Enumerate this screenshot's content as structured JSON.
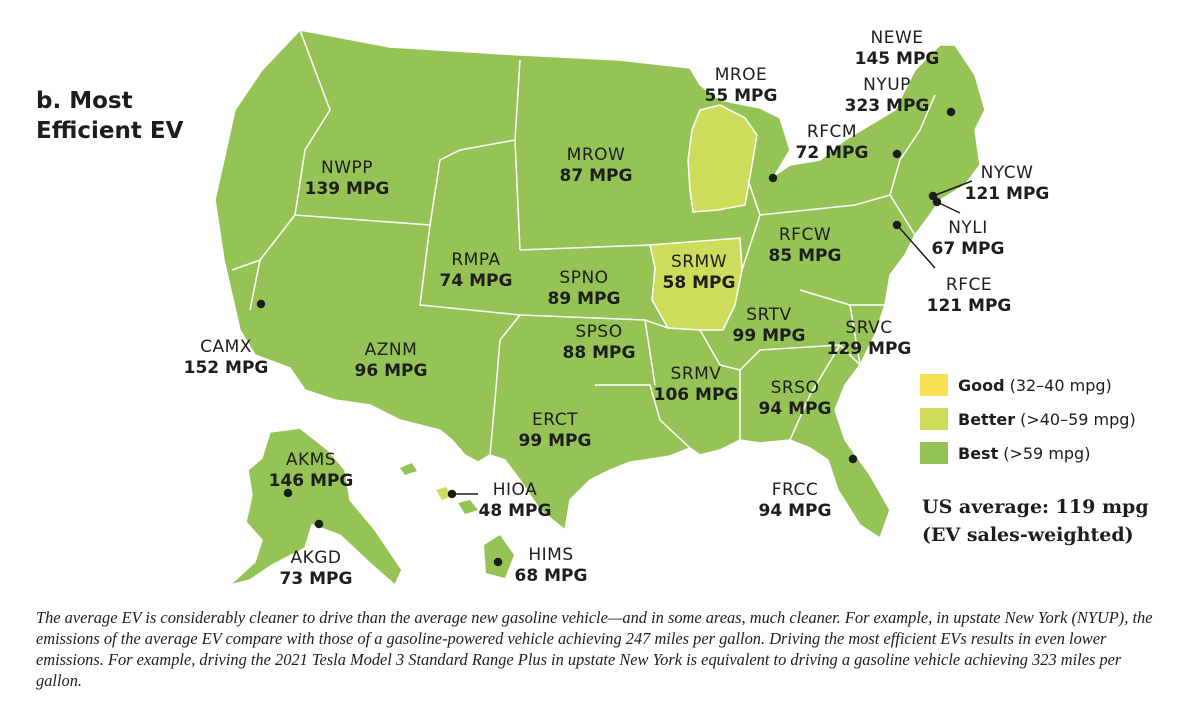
{
  "title": "b. Most Efficient EV",
  "colors": {
    "good": "#f8e154",
    "better": "#cddc5a",
    "best": "#96c356",
    "border": "#ffffff",
    "text": "#1d1d1b"
  },
  "regions": [
    {
      "code": "CAMX",
      "value": "152 MPG",
      "category": "best"
    },
    {
      "code": "NWPP",
      "value": "139 MPG",
      "category": "best"
    },
    {
      "code": "RMPA",
      "value": "74 MPG",
      "category": "best"
    },
    {
      "code": "AZNM",
      "value": "96 MPG",
      "category": "best"
    },
    {
      "code": "SPNO",
      "value": "89 MPG",
      "category": "best"
    },
    {
      "code": "SPSO",
      "value": "88 MPG",
      "category": "best"
    },
    {
      "code": "ERCT",
      "value": "99 MPG",
      "category": "best"
    },
    {
      "code": "MROW",
      "value": "87 MPG",
      "category": "best"
    },
    {
      "code": "MROE",
      "value": "55 MPG",
      "category": "better"
    },
    {
      "code": "SRMW",
      "value": "58 MPG",
      "category": "better"
    },
    {
      "code": "SRMV",
      "value": "106 MPG",
      "category": "best"
    },
    {
      "code": "RFCM",
      "value": "72 MPG",
      "category": "best"
    },
    {
      "code": "RFCW",
      "value": "85 MPG",
      "category": "best"
    },
    {
      "code": "SRTV",
      "value": "99 MPG",
      "category": "best"
    },
    {
      "code": "SRSO",
      "value": "94 MPG",
      "category": "best"
    },
    {
      "code": "SRVC",
      "value": "129 MPG",
      "category": "best"
    },
    {
      "code": "FRCC",
      "value": "94 MPG",
      "category": "best"
    },
    {
      "code": "RFCE",
      "value": "121 MPG",
      "category": "best"
    },
    {
      "code": "NYLI",
      "value": "67 MPG",
      "category": "best"
    },
    {
      "code": "NYCW",
      "value": "121 MPG",
      "category": "best"
    },
    {
      "code": "NYUP",
      "value": "323 MPG",
      "category": "best"
    },
    {
      "code": "NEWE",
      "value": "145 MPG",
      "category": "best"
    },
    {
      "code": "AKMS",
      "value": "146 MPG",
      "category": "best"
    },
    {
      "code": "AKGD",
      "value": "73 MPG",
      "category": "best"
    },
    {
      "code": "HIOA",
      "value": "48 MPG",
      "category": "better"
    },
    {
      "code": "HIMS",
      "value": "68 MPG",
      "category": "best"
    }
  ],
  "legend": [
    {
      "name": "Good",
      "range": "(32–40 mpg)",
      "color": "#f8e154"
    },
    {
      "name": "Better",
      "range": "(>40–59 mpg)",
      "color": "#cddc5a"
    },
    {
      "name": "Best",
      "range": "(>59 mpg)",
      "color": "#96c356"
    }
  ],
  "us_average": {
    "line1": "US average: 119 mpg",
    "line2": "(EV sales-weighted)"
  },
  "caption": "The average EV is considerably cleaner to drive than the average new gasoline vehicle—and in some areas, much cleaner. For example, in upstate New York (NYUP), the emissions of the average EV compare with those of a gasoline-powered vehicle achieving 247 miles per gallon. Driving the most efficient EVs results in even lower emissions. For example, driving the 2021 Tesla Model 3 Standard Range Plus in upstate New York is equivalent to driving a gasoline vehicle achieving 323 miles per gallon."
}
